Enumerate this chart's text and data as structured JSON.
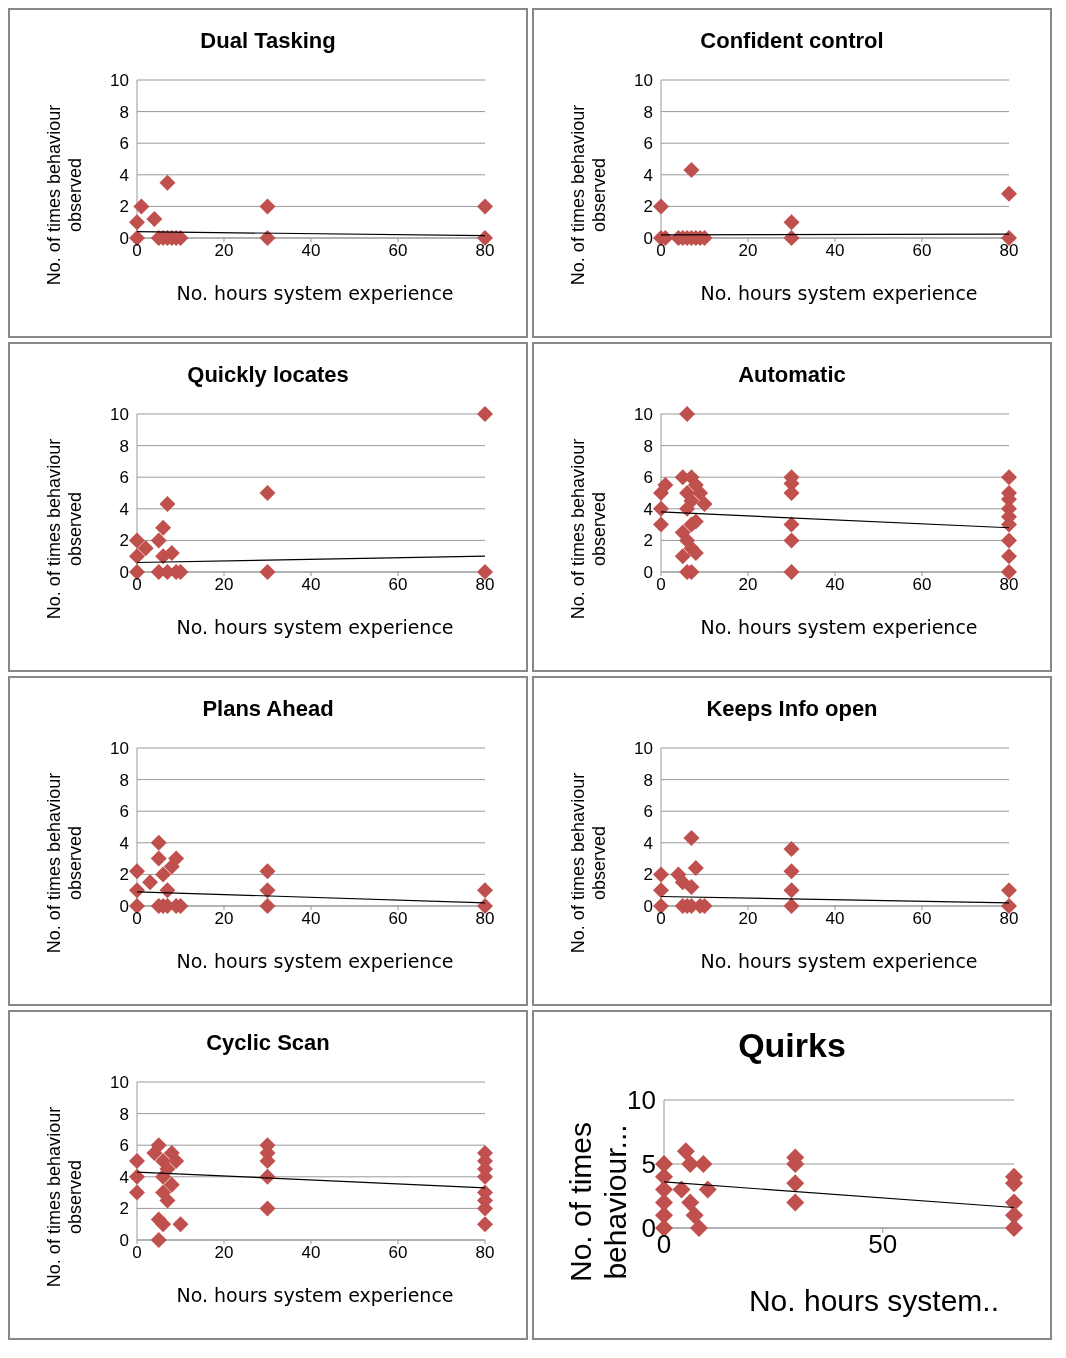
{
  "chart_data": [
    {
      "type": "scatter",
      "title": "Dual Tasking",
      "xlabel": "No. hours system experience",
      "ylabel": "No. of times behaviour observed",
      "xlim": [
        0,
        80
      ],
      "ylim": [
        0,
        10
      ],
      "xticks": [
        0,
        20,
        40,
        60,
        80
      ],
      "yticks": [
        0,
        2,
        4,
        6,
        8,
        10
      ],
      "grid": "y",
      "series": [
        {
          "color": "#c0504d",
          "marker": "diamond",
          "x": [
            0,
            0,
            1,
            4,
            5,
            6,
            7,
            7,
            8,
            9,
            10,
            30,
            30,
            80,
            80
          ],
          "values": [
            0,
            1,
            2,
            1.2,
            0,
            0,
            3.5,
            0,
            0,
            0,
            0,
            2,
            0,
            2,
            0
          ]
        },
        {
          "type": "line",
          "marker": "none",
          "color": "#000000",
          "x": [
            0,
            80
          ],
          "values": [
            0.4,
            0.15
          ]
        }
      ]
    },
    {
      "type": "scatter",
      "title": "Confident control",
      "xlabel": "No. hours system experience",
      "ylabel": "No. of times behaviour observed",
      "xlim": [
        0,
        80
      ],
      "ylim": [
        0,
        10
      ],
      "xticks": [
        0,
        20,
        40,
        60,
        80
      ],
      "yticks": [
        0,
        2,
        4,
        6,
        8,
        10
      ],
      "grid": "y",
      "series": [
        {
          "color": "#c0504d",
          "marker": "diamond",
          "x": [
            0,
            0,
            1,
            4,
            5,
            6,
            7,
            7,
            8,
            9,
            10,
            30,
            30,
            80,
            80
          ],
          "values": [
            0,
            2,
            0,
            0,
            0,
            0,
            4.3,
            0,
            0,
            0,
            0,
            1,
            0,
            2.8,
            0
          ]
        },
        {
          "type": "line",
          "marker": "none",
          "color": "#000000",
          "x": [
            0,
            80
          ],
          "values": [
            0.2,
            0.25
          ]
        }
      ]
    },
    {
      "type": "scatter",
      "title": "Quickly locates",
      "xlabel": "No. hours system experience",
      "ylabel": "No. of times behaviour observed",
      "xlim": [
        0,
        80
      ],
      "ylim": [
        0,
        10
      ],
      "xticks": [
        0,
        20,
        40,
        60,
        80
      ],
      "yticks": [
        0,
        2,
        4,
        6,
        8,
        10
      ],
      "grid": "y",
      "series": [
        {
          "color": "#c0504d",
          "marker": "diamond",
          "x": [
            0,
            0,
            0,
            2,
            5,
            5,
            6,
            6,
            7,
            7,
            8,
            9,
            10,
            30,
            30,
            80,
            80
          ],
          "values": [
            0,
            1,
            2,
            1.5,
            0,
            2,
            2.8,
            1,
            4.3,
            0,
            1.2,
            0,
            0,
            5,
            0,
            10,
            0
          ]
        },
        {
          "type": "line",
          "marker": "none",
          "color": "#000000",
          "x": [
            0,
            80
          ],
          "values": [
            0.6,
            1.0
          ]
        }
      ]
    },
    {
      "type": "scatter",
      "title": "Automatic",
      "xlabel": "No. hours system experience",
      "ylabel": "No. of times behaviour observed",
      "xlim": [
        0,
        80
      ],
      "ylim": [
        0,
        10
      ],
      "xticks": [
        0,
        20,
        40,
        60,
        80
      ],
      "yticks": [
        0,
        2,
        4,
        6,
        8,
        10
      ],
      "grid": "y",
      "series": [
        {
          "color": "#c0504d",
          "marker": "diamond",
          "x": [
            0,
            0,
            0,
            1,
            6,
            5,
            6,
            7,
            8,
            9,
            10,
            6,
            7,
            8,
            5,
            6,
            7,
            5,
            6,
            7,
            8,
            7,
            30,
            30,
            30,
            30,
            30,
            30,
            80,
            80,
            80,
            80,
            80,
            80,
            80,
            80,
            80
          ],
          "values": [
            3,
            4,
            5,
            5.5,
            10,
            6,
            5,
            6,
            5.5,
            5,
            4.3,
            4,
            3,
            3.2,
            2.5,
            2,
            1.5,
            1,
            0,
            0,
            1.2,
            4.5,
            6,
            5.6,
            5,
            3,
            2,
            0,
            6,
            5,
            4.6,
            4,
            3.5,
            3,
            2,
            1,
            0
          ]
        },
        {
          "type": "line",
          "marker": "none",
          "color": "#000000",
          "x": [
            0,
            80
          ],
          "values": [
            3.8,
            2.8
          ]
        }
      ]
    },
    {
      "type": "scatter",
      "title": "Plans Ahead",
      "xlabel": "No. hours system experience",
      "ylabel": "No. of times behaviour observed",
      "xlim": [
        0,
        80
      ],
      "ylim": [
        0,
        10
      ],
      "xticks": [
        0,
        20,
        40,
        60,
        80
      ],
      "yticks": [
        0,
        2,
        4,
        6,
        8,
        10
      ],
      "grid": "y",
      "series": [
        {
          "color": "#c0504d",
          "marker": "diamond",
          "x": [
            0,
            0,
            0,
            3,
            5,
            5,
            6,
            5,
            6,
            7,
            7,
            8,
            9,
            9,
            10,
            30,
            30,
            30,
            80,
            80
          ],
          "values": [
            0,
            1,
            2.2,
            1.5,
            4,
            3,
            2,
            0,
            0,
            1,
            0,
            2.5,
            3,
            0,
            0,
            0,
            1,
            2.2,
            0,
            1
          ]
        },
        {
          "type": "line",
          "marker": "none",
          "color": "#000000",
          "x": [
            0,
            80
          ],
          "values": [
            0.9,
            0.2
          ]
        }
      ]
    },
    {
      "type": "scatter",
      "title": "Keeps Info open",
      "xlabel": "No. hours system experience",
      "ylabel": "No. of times behaviour observed",
      "xlim": [
        0,
        80
      ],
      "ylim": [
        0,
        10
      ],
      "xticks": [
        0,
        20,
        40,
        60,
        80
      ],
      "yticks": [
        0,
        2,
        4,
        6,
        8,
        10
      ],
      "grid": "y",
      "series": [
        {
          "color": "#c0504d",
          "marker": "diamond",
          "x": [
            0,
            0,
            0,
            4,
            5,
            5,
            6,
            7,
            7,
            7,
            8,
            9,
            10,
            30,
            30,
            30,
            30,
            80,
            80
          ],
          "values": [
            0,
            1,
            2,
            2,
            1.5,
            0,
            0,
            4.3,
            1.2,
            0,
            2.4,
            0,
            0,
            0,
            1,
            2.2,
            3.6,
            0,
            1
          ]
        },
        {
          "type": "line",
          "marker": "none",
          "color": "#000000",
          "x": [
            0,
            80
          ],
          "values": [
            0.6,
            0.2
          ]
        }
      ]
    },
    {
      "type": "scatter",
      "title": "Cyclic Scan",
      "xlabel": "No. hours system experience",
      "ylabel": "No. of times behaviour observed",
      "xlim": [
        0,
        80
      ],
      "ylim": [
        0,
        10
      ],
      "xticks": [
        0,
        20,
        40,
        60,
        80
      ],
      "yticks": [
        0,
        2,
        4,
        6,
        8,
        10
      ],
      "grid": "y",
      "series": [
        {
          "color": "#c0504d",
          "marker": "diamond",
          "x": [
            0,
            0,
            0,
            4,
            5,
            5,
            5,
            6,
            6,
            6,
            6,
            7,
            7,
            8,
            8,
            9,
            10,
            30,
            30,
            30,
            30,
            30,
            80,
            80,
            80,
            80,
            80,
            80,
            80,
            80
          ],
          "values": [
            3,
            4,
            5,
            5.5,
            6,
            1.3,
            0,
            5,
            3,
            1,
            4,
            4.5,
            2.5,
            5.5,
            3.5,
            5,
            1,
            6,
            5.5,
            5,
            4,
            2,
            5.5,
            5,
            4.5,
            4,
            3,
            2.5,
            2,
            1
          ]
        },
        {
          "type": "line",
          "marker": "none",
          "color": "#000000",
          "x": [
            0,
            80
          ],
          "values": [
            4.3,
            3.3
          ]
        }
      ]
    },
    {
      "type": "scatter",
      "title": "Quirks",
      "xlabel": "No. hours system..",
      "ylabel": "No. of times behaviour...",
      "xlim": [
        0,
        80
      ],
      "ylim": [
        0,
        10
      ],
      "xticks": [
        0,
        50
      ],
      "yticks": [
        0,
        5,
        10
      ],
      "grid": "y",
      "series": [
        {
          "color": "#c0504d",
          "marker": "diamond",
          "x": [
            0,
            0,
            0,
            0,
            0,
            0,
            4,
            5,
            6,
            6,
            7,
            8,
            9,
            10,
            30,
            30,
            30,
            30,
            80,
            80,
            80,
            80,
            80
          ],
          "values": [
            0,
            1,
            2,
            3,
            4,
            5,
            3,
            6,
            5,
            2,
            1,
            0,
            5,
            3,
            2,
            3.5,
            5,
            5.5,
            0,
            1,
            2,
            3.5,
            4
          ]
        },
        {
          "type": "line",
          "marker": "none",
          "color": "#000000",
          "x": [
            0,
            80
          ],
          "values": [
            3.6,
            1.6
          ]
        }
      ]
    }
  ]
}
